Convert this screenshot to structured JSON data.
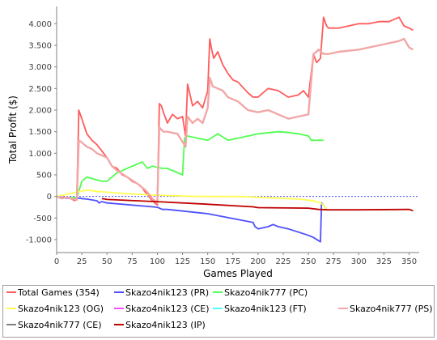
{
  "chart_data": {
    "type": "line",
    "title": "",
    "xlabel": "Games Played",
    "ylabel": "Total Profit ($)",
    "xlim": [
      0,
      360
    ],
    "ylim": [
      -1300,
      4400
    ],
    "x_ticks": [
      0,
      25,
      50,
      75,
      100,
      125,
      150,
      175,
      200,
      225,
      250,
      275,
      300,
      325,
      350
    ],
    "x_tick_labels": [
      "0",
      "25",
      "50",
      "75",
      "100",
      "125",
      "150",
      "175",
      "200",
      "225",
      "250",
      "275",
      "300",
      "325",
      "350"
    ],
    "y_ticks": [
      -1000,
      -500,
      0,
      500,
      1000,
      1500,
      2000,
      2500,
      3000,
      3500,
      4000
    ],
    "y_tick_labels": [
      "-1.000",
      "-500",
      "0",
      "500",
      "1.000",
      "1.500",
      "2.000",
      "2.500",
      "3.000",
      "3.500",
      "4.000"
    ],
    "grid": false,
    "zero_line": true,
    "legend_position": "bottom",
    "series": [
      {
        "name": "Total Games (354)",
        "color": "#ff5b5b",
        "x": [
          0,
          5,
          10,
          15,
          18,
          20,
          22,
          25,
          30,
          35,
          40,
          45,
          50,
          55,
          60,
          65,
          70,
          75,
          80,
          85,
          88,
          90,
          95,
          100,
          102,
          104,
          106,
          110,
          115,
          120,
          125,
          128,
          130,
          135,
          140,
          145,
          150,
          152,
          154,
          156,
          160,
          165,
          170,
          175,
          180,
          190,
          195,
          200,
          210,
          220,
          230,
          240,
          245,
          250,
          255,
          258,
          260,
          262,
          265,
          268,
          270,
          280,
          290,
          300,
          310,
          320,
          330,
          340,
          345,
          350,
          354
        ],
        "y": [
          0,
          -50,
          -20,
          -60,
          -100,
          -40,
          2000,
          1800,
          1450,
          1300,
          1200,
          1050,
          900,
          700,
          650,
          500,
          450,
          350,
          300,
          200,
          100,
          50,
          -100,
          -200,
          2150,
          2100,
          1950,
          1700,
          1900,
          1800,
          1850,
          1400,
          2600,
          2100,
          2200,
          2050,
          2450,
          3650,
          3400,
          3200,
          3350,
          3050,
          2850,
          2700,
          2650,
          2400,
          2300,
          2300,
          2500,
          2450,
          2300,
          2350,
          2450,
          2300,
          3300,
          3100,
          3150,
          3200,
          4150,
          3950,
          3900,
          3900,
          3950,
          4000,
          4000,
          4050,
          4050,
          4150,
          3950,
          3900,
          3850
        ]
      },
      {
        "name": "Skazo4nik123 (PR)",
        "color": "#5050ff",
        "x": [
          0,
          10,
          20,
          25,
          30,
          40,
          42,
          45,
          50,
          100,
          105,
          110,
          150,
          195,
          197,
          200,
          210,
          215,
          220,
          230,
          250,
          255,
          262,
          263,
          265,
          268
        ],
        "y": [
          0,
          -40,
          -30,
          -50,
          -60,
          -100,
          -150,
          -120,
          -150,
          -250,
          -300,
          -300,
          -400,
          -600,
          -700,
          -750,
          -700,
          -650,
          -700,
          -750,
          -900,
          -950,
          -1050,
          -150,
          -200,
          -300
        ]
      },
      {
        "name": "Skazo4nik777 (PC)",
        "color": "#50ff50",
        "x": [
          0,
          5,
          10,
          20,
          25,
          30,
          45,
          50,
          55,
          60,
          85,
          90,
          95,
          105,
          110,
          125,
          127,
          130,
          140,
          150,
          160,
          170,
          180,
          200,
          220,
          230,
          240,
          250,
          253,
          265
        ],
        "y": [
          0,
          -40,
          -20,
          -30,
          350,
          450,
          350,
          350,
          450,
          550,
          800,
          650,
          700,
          650,
          650,
          500,
          1350,
          1400,
          1350,
          1300,
          1450,
          1300,
          1350,
          1450,
          1500,
          1480,
          1450,
          1400,
          1300,
          1300
        ]
      },
      {
        "name": "Skazo4nik123 (OG)",
        "color": "#ffff50",
        "x": [
          0,
          10,
          20,
          30,
          40,
          60,
          80,
          100,
          140,
          180,
          200,
          220,
          240,
          255,
          262,
          265,
          268
        ],
        "y": [
          0,
          50,
          100,
          150,
          120,
          80,
          50,
          30,
          0,
          0,
          -20,
          -40,
          -60,
          -100,
          -150,
          -200,
          -300
        ]
      },
      {
        "name": "Skazo4nik123 (CE)",
        "color": "#ff50ff",
        "x": [],
        "y": []
      },
      {
        "name": "Skazo4nik123 (FT)",
        "color": "#50ffff",
        "x": [],
        "y": []
      },
      {
        "name": "Skazo4nik777 (PS)",
        "color": "#f2a7a7",
        "x": [
          0,
          5,
          10,
          15,
          20,
          22,
          25,
          30,
          35,
          40,
          45,
          50,
          55,
          60,
          70,
          80,
          88,
          90,
          95,
          100,
          102,
          104,
          106,
          110,
          120,
          128,
          130,
          135,
          140,
          145,
          150,
          152,
          155,
          160,
          165,
          170,
          175,
          180,
          190,
          200,
          210,
          220,
          230,
          240,
          250,
          255,
          258,
          260,
          265,
          270,
          280,
          300,
          320,
          340,
          345,
          350,
          354
        ],
        "y": [
          0,
          -40,
          -20,
          -50,
          -80,
          1300,
          1250,
          1150,
          1100,
          1000,
          950,
          900,
          700,
          600,
          450,
          300,
          150,
          100,
          -50,
          -150,
          1600,
          1550,
          1500,
          1500,
          1450,
          1150,
          1850,
          1700,
          1800,
          1700,
          2050,
          2750,
          2550,
          2500,
          2450,
          2300,
          2250,
          2200,
          2000,
          1950,
          2000,
          1900,
          1800,
          1850,
          1900,
          3300,
          3350,
          3400,
          3300,
          3300,
          3350,
          3400,
          3500,
          3600,
          3650,
          3450,
          3400
        ]
      },
      {
        "name": "Skazo4nik777 (CE)",
        "color": "#808080",
        "x": [],
        "y": []
      },
      {
        "name": "Skazo4nik123 (IP)",
        "color": "#c00000",
        "x": [
          45,
          48,
          50,
          100,
          150,
          195,
          200,
          250,
          260,
          270,
          300,
          350,
          354
        ],
        "y": [
          -50,
          -60,
          -70,
          -120,
          -180,
          -240,
          -260,
          -270,
          -300,
          -310,
          -310,
          -300,
          -330
        ]
      }
    ]
  }
}
